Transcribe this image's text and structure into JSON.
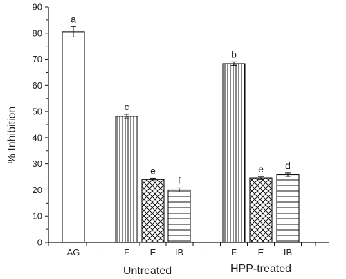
{
  "chart_data": {
    "type": "bar",
    "ylabel": "% Inhibition",
    "ylim": [
      0,
      90
    ],
    "yticks": [
      0,
      10,
      20,
      30,
      40,
      50,
      60,
      70,
      80,
      90
    ],
    "grid": false,
    "categories": [
      "AG",
      "--",
      "F",
      "E",
      "IB",
      "--",
      "F",
      "E",
      "IB"
    ],
    "group_labels": [
      "Untreated",
      "HPP-treated"
    ],
    "bars": [
      {
        "category": "AG",
        "group": "",
        "value": 80.5,
        "error": 2.0,
        "letter": "a",
        "pattern": "open"
      },
      {
        "category": "F",
        "group": "Untreated",
        "value": 48.2,
        "error": 0.8,
        "letter": "c",
        "pattern": "vertical-lines"
      },
      {
        "category": "E",
        "group": "Untreated",
        "value": 24.0,
        "error": 0.5,
        "letter": "e",
        "pattern": "crosshatch"
      },
      {
        "category": "IB",
        "group": "Untreated",
        "value": 20.0,
        "error": 0.8,
        "letter": "f",
        "pattern": "horizontal-lines"
      },
      {
        "category": "F",
        "group": "HPP-treated",
        "value": 68.3,
        "error": 0.7,
        "letter": "b",
        "pattern": "vertical-lines"
      },
      {
        "category": "E",
        "group": "HPP-treated",
        "value": 24.6,
        "error": 0.6,
        "letter": "e",
        "pattern": "crosshatch"
      },
      {
        "category": "IB",
        "group": "HPP-treated",
        "value": 25.8,
        "error": 0.7,
        "letter": "d",
        "pattern": "horizontal-lines"
      }
    ]
  }
}
